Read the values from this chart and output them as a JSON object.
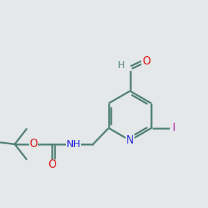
{
  "background_color": "#e5e8e8",
  "bond_color": "#4a7c6f",
  "bond_width": 1.8,
  "dbo": 0.055,
  "atom_colors": {
    "O": "#dd1111",
    "N": "#2222dd",
    "I": "#bb33bb",
    "H": "#4a7c6f",
    "C": "#4a7c6f"
  },
  "font_size": 10,
  "fig_width": 3.0,
  "fig_height": 3.0,
  "dpi": 100
}
